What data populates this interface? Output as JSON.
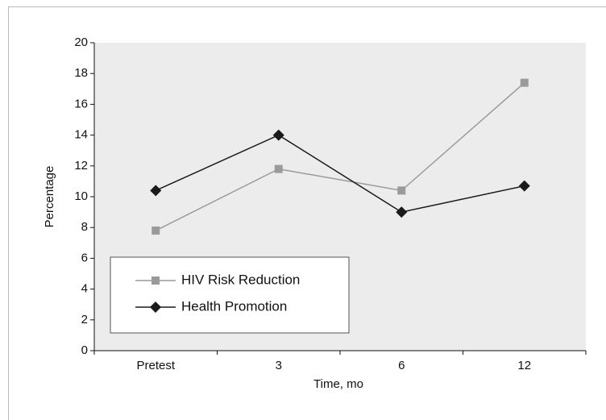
{
  "chart_data": {
    "type": "line",
    "categories": [
      "Pretest",
      "3",
      "6",
      "12"
    ],
    "series": [
      {
        "name": "HIV Risk Reduction",
        "color": "#9a9a9a",
        "marker": "square",
        "values": [
          7.8,
          11.8,
          10.4,
          17.4
        ]
      },
      {
        "name": "Health Promotion",
        "color": "#1a1a1a",
        "marker": "diamond",
        "values": [
          10.4,
          14.0,
          9.0,
          10.7
        ]
      }
    ],
    "xlabel": "Time, mo",
    "ylabel": "Percentage",
    "ylim": [
      0,
      20
    ],
    "yticks": [
      0,
      2,
      4,
      6,
      8,
      10,
      12,
      14,
      16,
      18,
      20
    ],
    "legend": "lower left"
  }
}
